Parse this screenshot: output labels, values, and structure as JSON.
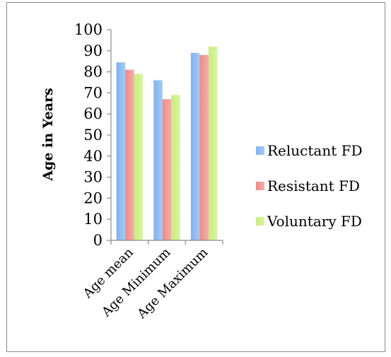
{
  "colors": {
    "reluctant": "#7fb2f0",
    "resistant": "#f08a86",
    "voluntary": "#c7ef7c",
    "axis": "#8c8c8c"
  },
  "chart_data": {
    "type": "bar",
    "title": "",
    "xlabel": "",
    "ylabel": "Age in Years",
    "ylim": [
      0,
      100
    ],
    "yticks": [
      0,
      10,
      20,
      30,
      40,
      50,
      60,
      70,
      80,
      90,
      100
    ],
    "grid": false,
    "legend_position": "right",
    "categories": [
      "Age mean",
      "Age Minimum",
      "Age Maximum"
    ],
    "series": [
      {
        "name": "Reluctant FD",
        "values": [
          84.5,
          76,
          89
        ]
      },
      {
        "name": "Resistant FD",
        "values": [
          81,
          67,
          88
        ]
      },
      {
        "name": "Voluntary FD",
        "values": [
          79,
          69,
          92
        ]
      }
    ]
  }
}
